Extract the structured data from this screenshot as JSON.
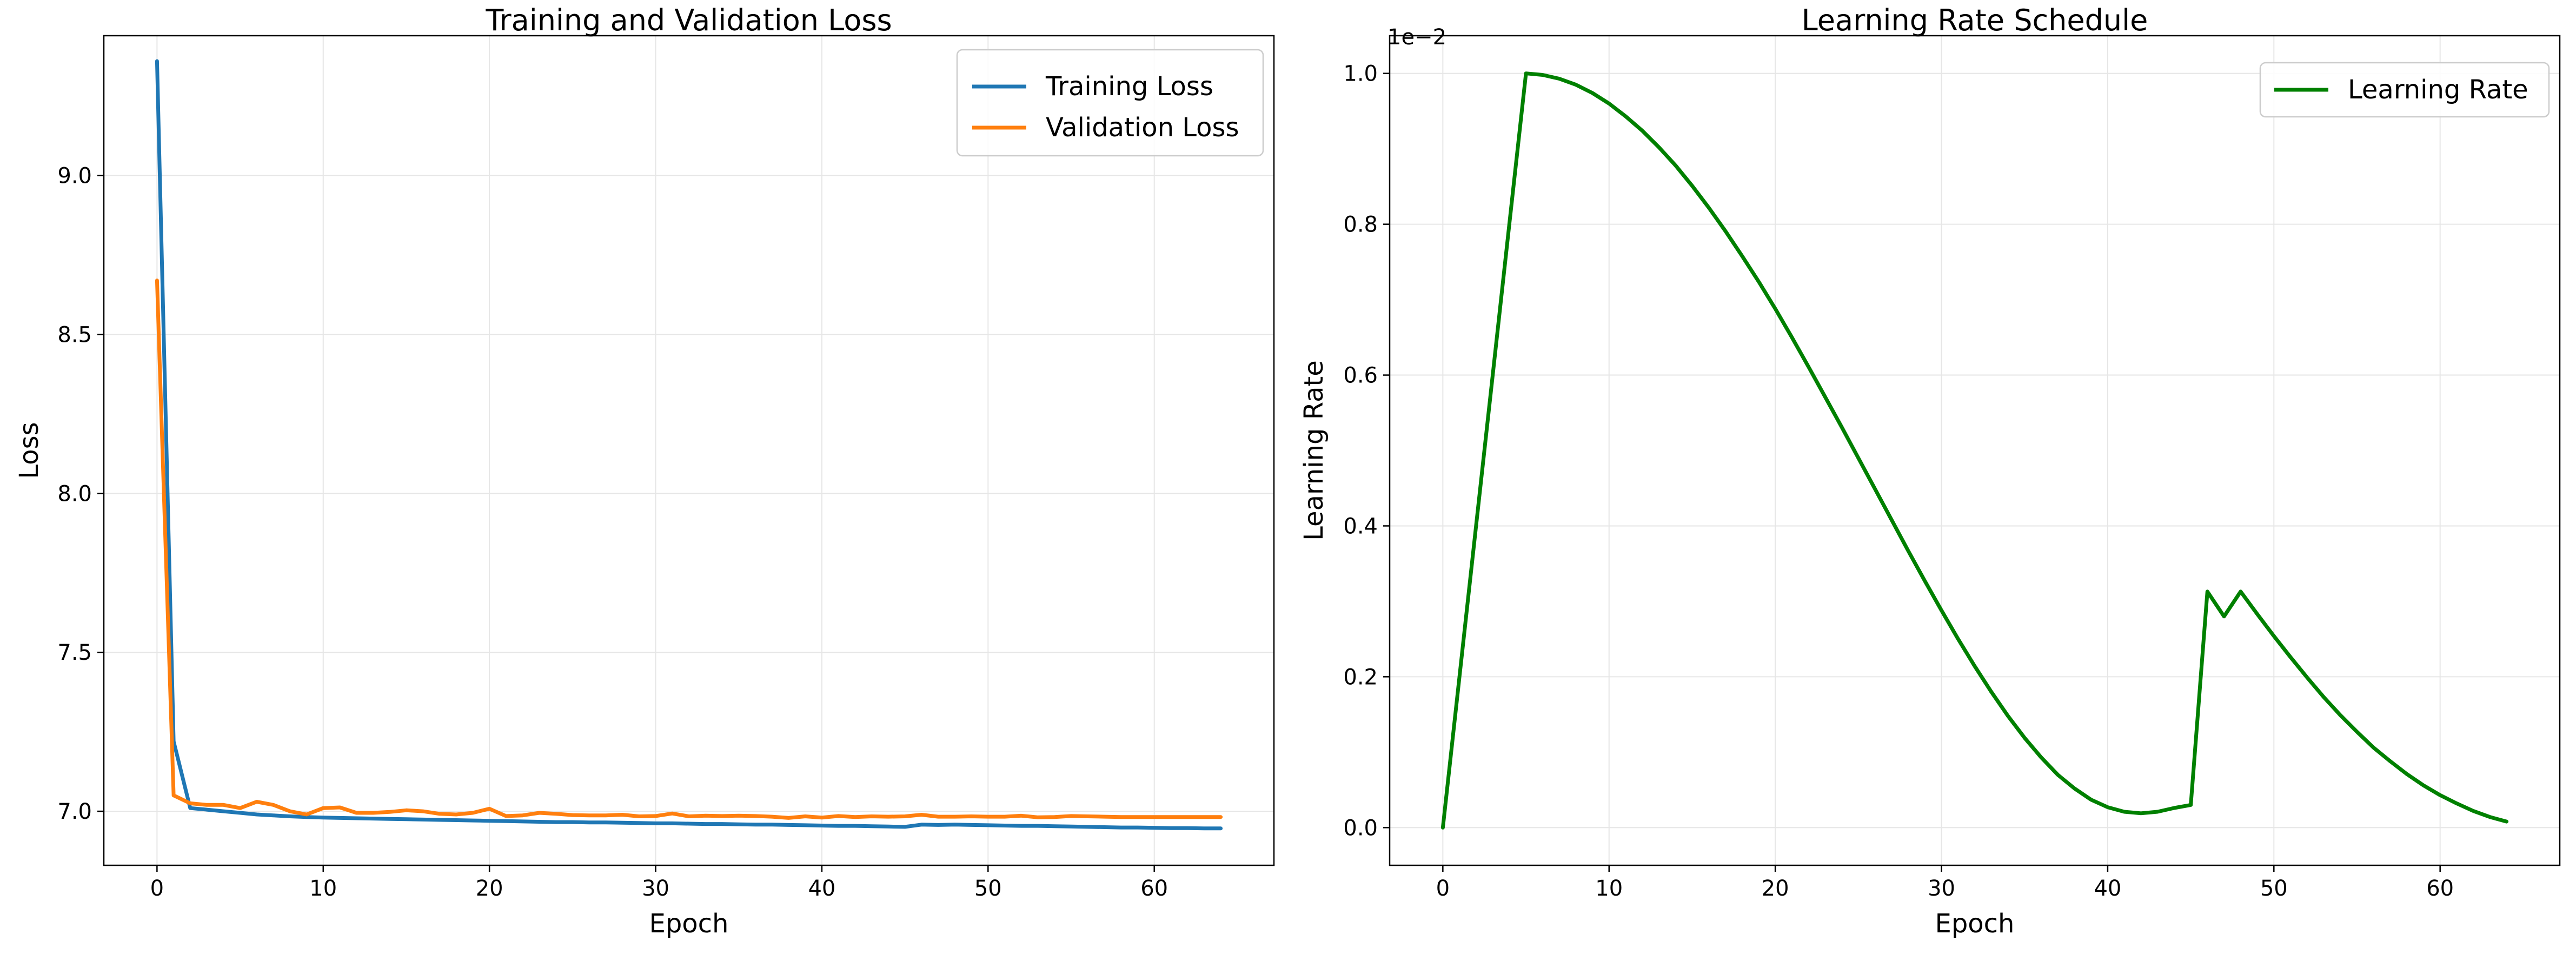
{
  "chart_data": [
    {
      "type": "line",
      "title": "Training and Validation Loss",
      "xlabel": "Epoch",
      "ylabel": "Loss",
      "xlim": [
        -3.2,
        67.2
      ],
      "ylim": [
        6.83,
        9.44
      ],
      "xticks": [
        0,
        10,
        20,
        30,
        40,
        50,
        60
      ],
      "xtick_labels": [
        "0",
        "10",
        "20",
        "30",
        "40",
        "50",
        "60"
      ],
      "yticks": [
        7.0,
        7.5,
        8.0,
        8.5,
        9.0
      ],
      "ytick_labels": [
        "7.0",
        "7.5",
        "8.0",
        "8.5",
        "9.0"
      ],
      "grid": true,
      "legend": "top-right",
      "x": [
        0,
        1,
        2,
        3,
        4,
        5,
        6,
        7,
        8,
        9,
        10,
        11,
        12,
        13,
        14,
        15,
        16,
        17,
        18,
        19,
        20,
        21,
        22,
        23,
        24,
        25,
        26,
        27,
        28,
        29,
        30,
        31,
        32,
        33,
        34,
        35,
        36,
        37,
        38,
        39,
        40,
        41,
        42,
        43,
        44,
        45,
        46,
        47,
        48,
        49,
        50,
        51,
        52,
        53,
        54,
        55,
        56,
        57,
        58,
        59,
        60,
        61,
        62,
        63,
        64
      ],
      "series": [
        {
          "name": "Training Loss",
          "color": "#1f77b4",
          "values": [
            9.36,
            7.22,
            7.01,
            7.005,
            7.0,
            6.995,
            6.99,
            6.987,
            6.984,
            6.982,
            6.98,
            6.979,
            6.978,
            6.977,
            6.976,
            6.975,
            6.974,
            6.973,
            6.972,
            6.971,
            6.97,
            6.969,
            6.968,
            6.967,
            6.966,
            6.966,
            6.965,
            6.965,
            6.964,
            6.963,
            6.962,
            6.962,
            6.961,
            6.96,
            6.96,
            6.959,
            6.958,
            6.958,
            6.957,
            6.956,
            6.955,
            6.954,
            6.954,
            6.953,
            6.952,
            6.951,
            6.958,
            6.957,
            6.958,
            6.957,
            6.956,
            6.955,
            6.954,
            6.954,
            6.953,
            6.952,
            6.951,
            6.95,
            6.949,
            6.949,
            6.948,
            6.947,
            6.947,
            6.946,
            6.946
          ]
        },
        {
          "name": "Validation Loss",
          "color": "#ff7f0e",
          "values": [
            8.67,
            7.05,
            7.025,
            7.02,
            7.02,
            7.01,
            7.03,
            7.02,
            7.0,
            6.99,
            7.01,
            7.012,
            6.995,
            6.995,
            6.998,
            7.003,
            7.0,
            6.992,
            6.99,
            6.995,
            7.008,
            6.985,
            6.987,
            6.995,
            6.992,
            6.988,
            6.987,
            6.987,
            6.989,
            6.984,
            6.985,
            6.993,
            6.984,
            6.986,
            6.985,
            6.986,
            6.985,
            6.983,
            6.979,
            6.984,
            6.98,
            6.985,
            6.982,
            6.984,
            6.983,
            6.984,
            6.989,
            6.983,
            6.983,
            6.984,
            6.983,
            6.983,
            6.986,
            6.981,
            6.982,
            6.985,
            6.984,
            6.983,
            6.982,
            6.982,
            6.982,
            6.982,
            6.982,
            6.982,
            6.982
          ]
        }
      ]
    },
    {
      "type": "line",
      "title": "Learning Rate Schedule",
      "xlabel": "Epoch",
      "ylabel": "Learning Rate",
      "offset_text": "1e−2",
      "xlim": [
        -3.2,
        67.2
      ],
      "ylim": [
        -0.05,
        1.05
      ],
      "xticks": [
        0,
        10,
        20,
        30,
        40,
        50,
        60
      ],
      "xtick_labels": [
        "0",
        "10",
        "20",
        "30",
        "40",
        "50",
        "60"
      ],
      "yticks": [
        0.0,
        0.2,
        0.4,
        0.6,
        0.8,
        1.0
      ],
      "ytick_labels": [
        "0.0",
        "0.2",
        "0.4",
        "0.6",
        "0.8",
        "1.0"
      ],
      "grid": true,
      "legend": "top-right",
      "x": [
        0,
        1,
        2,
        3,
        4,
        5,
        6,
        7,
        8,
        9,
        10,
        11,
        12,
        13,
        14,
        15,
        16,
        17,
        18,
        19,
        20,
        21,
        22,
        23,
        24,
        25,
        26,
        27,
        28,
        29,
        30,
        31,
        32,
        33,
        34,
        35,
        36,
        37,
        38,
        39,
        40,
        41,
        42,
        43,
        44,
        45,
        46,
        47,
        48,
        49,
        50,
        51,
        52,
        53,
        54,
        55,
        56,
        57,
        58,
        59,
        60,
        61,
        62,
        63,
        64
      ],
      "series": [
        {
          "name": "Learning Rate",
          "color": "#008000",
          "values": [
            0.0,
            0.2,
            0.4,
            0.6,
            0.8,
            1.0,
            0.998,
            0.993,
            0.985,
            0.974,
            0.96,
            0.943,
            0.924,
            0.902,
            0.878,
            0.851,
            0.822,
            0.791,
            0.758,
            0.724,
            0.688,
            0.65,
            0.611,
            0.571,
            0.531,
            0.49,
            0.449,
            0.408,
            0.367,
            0.327,
            0.288,
            0.25,
            0.214,
            0.18,
            0.148,
            0.119,
            0.093,
            0.07,
            0.052,
            0.037,
            0.027,
            0.021,
            0.019,
            0.021,
            0.026,
            0.03,
            0.313,
            0.28,
            0.313,
            0.283,
            0.254,
            0.226,
            0.199,
            0.173,
            0.149,
            0.127,
            0.106,
            0.088,
            0.071,
            0.056,
            0.043,
            0.032,
            0.022,
            0.014,
            0.008
          ]
        }
      ]
    }
  ]
}
